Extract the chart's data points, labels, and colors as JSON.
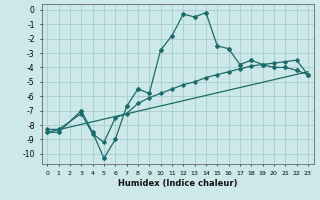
{
  "title": "",
  "xlabel": "Humidex (Indice chaleur)",
  "ylabel": "",
  "xlim": [
    -0.5,
    23.5
  ],
  "ylim": [
    -10.7,
    0.4
  ],
  "yticks": [
    0,
    -1,
    -2,
    -3,
    -4,
    -5,
    -6,
    -7,
    -8,
    -9,
    -10
  ],
  "xticks": [
    0,
    1,
    2,
    3,
    4,
    5,
    6,
    7,
    8,
    9,
    10,
    11,
    12,
    13,
    14,
    15,
    16,
    17,
    18,
    19,
    20,
    21,
    22,
    23
  ],
  "bg_color": "#cce8e8",
  "line_color": "#1a6b6b",
  "grid_color": "#aacccc",
  "line1_x": [
    0,
    1,
    3,
    4,
    5,
    6,
    7,
    8,
    9,
    10,
    11,
    12,
    13,
    14,
    15,
    16,
    17,
    18,
    19,
    20,
    21,
    22,
    23
  ],
  "line1_y": [
    -8.5,
    -8.5,
    -7.0,
    -8.5,
    -10.3,
    -9.0,
    -6.7,
    -5.5,
    -5.8,
    -2.8,
    -1.8,
    -0.3,
    -0.5,
    -0.2,
    -2.5,
    -2.7,
    -3.8,
    -3.5,
    -3.8,
    -4.0,
    -4.0,
    -4.2,
    -4.5
  ],
  "line2_x": [
    0,
    23
  ],
  "line2_y": [
    -8.5,
    -4.3
  ],
  "line3_x": [
    0,
    1,
    3,
    4,
    5,
    6,
    7,
    8,
    9,
    10,
    11,
    12,
    13,
    14,
    15,
    16,
    17,
    18,
    19,
    20,
    21,
    22,
    23
  ],
  "line3_y": [
    -8.3,
    -8.3,
    -7.2,
    -8.6,
    -9.2,
    -7.5,
    -7.2,
    -6.5,
    -6.1,
    -5.8,
    -5.5,
    -5.2,
    -5.0,
    -4.7,
    -4.5,
    -4.3,
    -4.1,
    -3.9,
    -3.8,
    -3.7,
    -3.6,
    -3.5,
    -4.5
  ]
}
